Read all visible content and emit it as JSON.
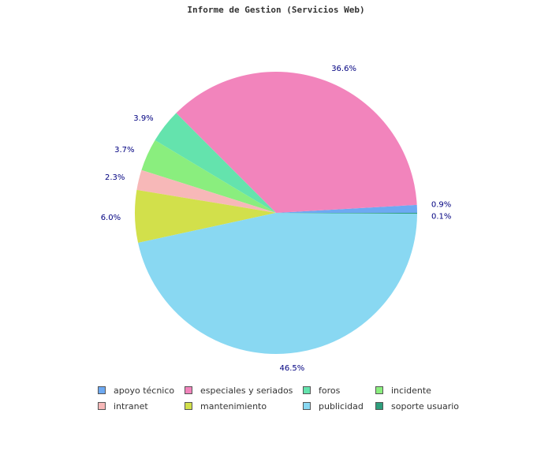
{
  "chart_data": {
    "type": "pie",
    "title": "Informe de Gestion (Servicios Web)",
    "slices": [
      {
        "label": "apoyo técnico",
        "value": 0.9,
        "value_label": "0.9%",
        "color": "#6da9f2"
      },
      {
        "label": "especiales y seriados",
        "value": 36.6,
        "value_label": "36.6%",
        "color": "#f284bc"
      },
      {
        "label": "foros",
        "value": 3.9,
        "value_label": "3.9%",
        "color": "#64e3ad"
      },
      {
        "label": "incidente",
        "value": 3.7,
        "value_label": "3.7%",
        "color": "#8aee7e"
      },
      {
        "label": "intranet",
        "value": 2.3,
        "value_label": "2.3%",
        "color": "#f7b8b8"
      },
      {
        "label": "mantenimiento",
        "value": 6.0,
        "value_label": "6.0%",
        "color": "#d2e04b"
      },
      {
        "label": "publicidad",
        "value": 46.5,
        "value_label": "46.5%",
        "color": "#89d8f2"
      },
      {
        "label": "soporte usuario",
        "value": 0.1,
        "value_label": "0.1%",
        "color": "#2e9e7c"
      }
    ],
    "legend_position": "bottom"
  }
}
